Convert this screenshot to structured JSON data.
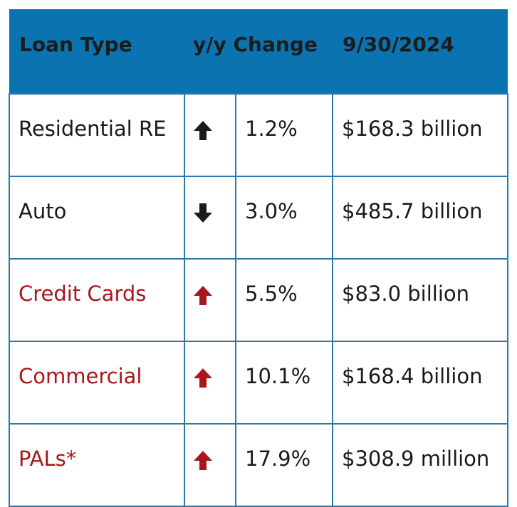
{
  "headers": {
    "loan_type": "Loan Type",
    "yy_change": "y/y Change",
    "date": "9/30/2024"
  },
  "colors": {
    "header_bg": "#0b73b0",
    "border": "#2a78ad",
    "up_dark": "#1a1a1a",
    "down_dark": "#1a1a1a",
    "highlight_red": "#a8171b"
  },
  "rows": [
    {
      "type": "Residential RE",
      "direction": "up",
      "arrow_icon": "arrow-up-icon",
      "change": "1.2%",
      "amount": "$168.3 billion",
      "color": "dark"
    },
    {
      "type": "Auto",
      "direction": "down",
      "arrow_icon": "arrow-down-icon",
      "change": "3.0%",
      "amount": "$485.7 billion",
      "color": "dark"
    },
    {
      "type": "Credit Cards",
      "direction": "up",
      "arrow_icon": "arrow-up-icon",
      "change": "5.5%",
      "amount": "$83.0 billion",
      "color": "red"
    },
    {
      "type": "Commercial",
      "direction": "up",
      "arrow_icon": "arrow-up-icon",
      "change": "10.1%",
      "amount": "$168.4 billion",
      "color": "red"
    },
    {
      "type": "PALs*",
      "direction": "up",
      "arrow_icon": "arrow-up-icon",
      "change": "17.9%",
      "amount": "$308.9 million",
      "color": "red"
    }
  ]
}
